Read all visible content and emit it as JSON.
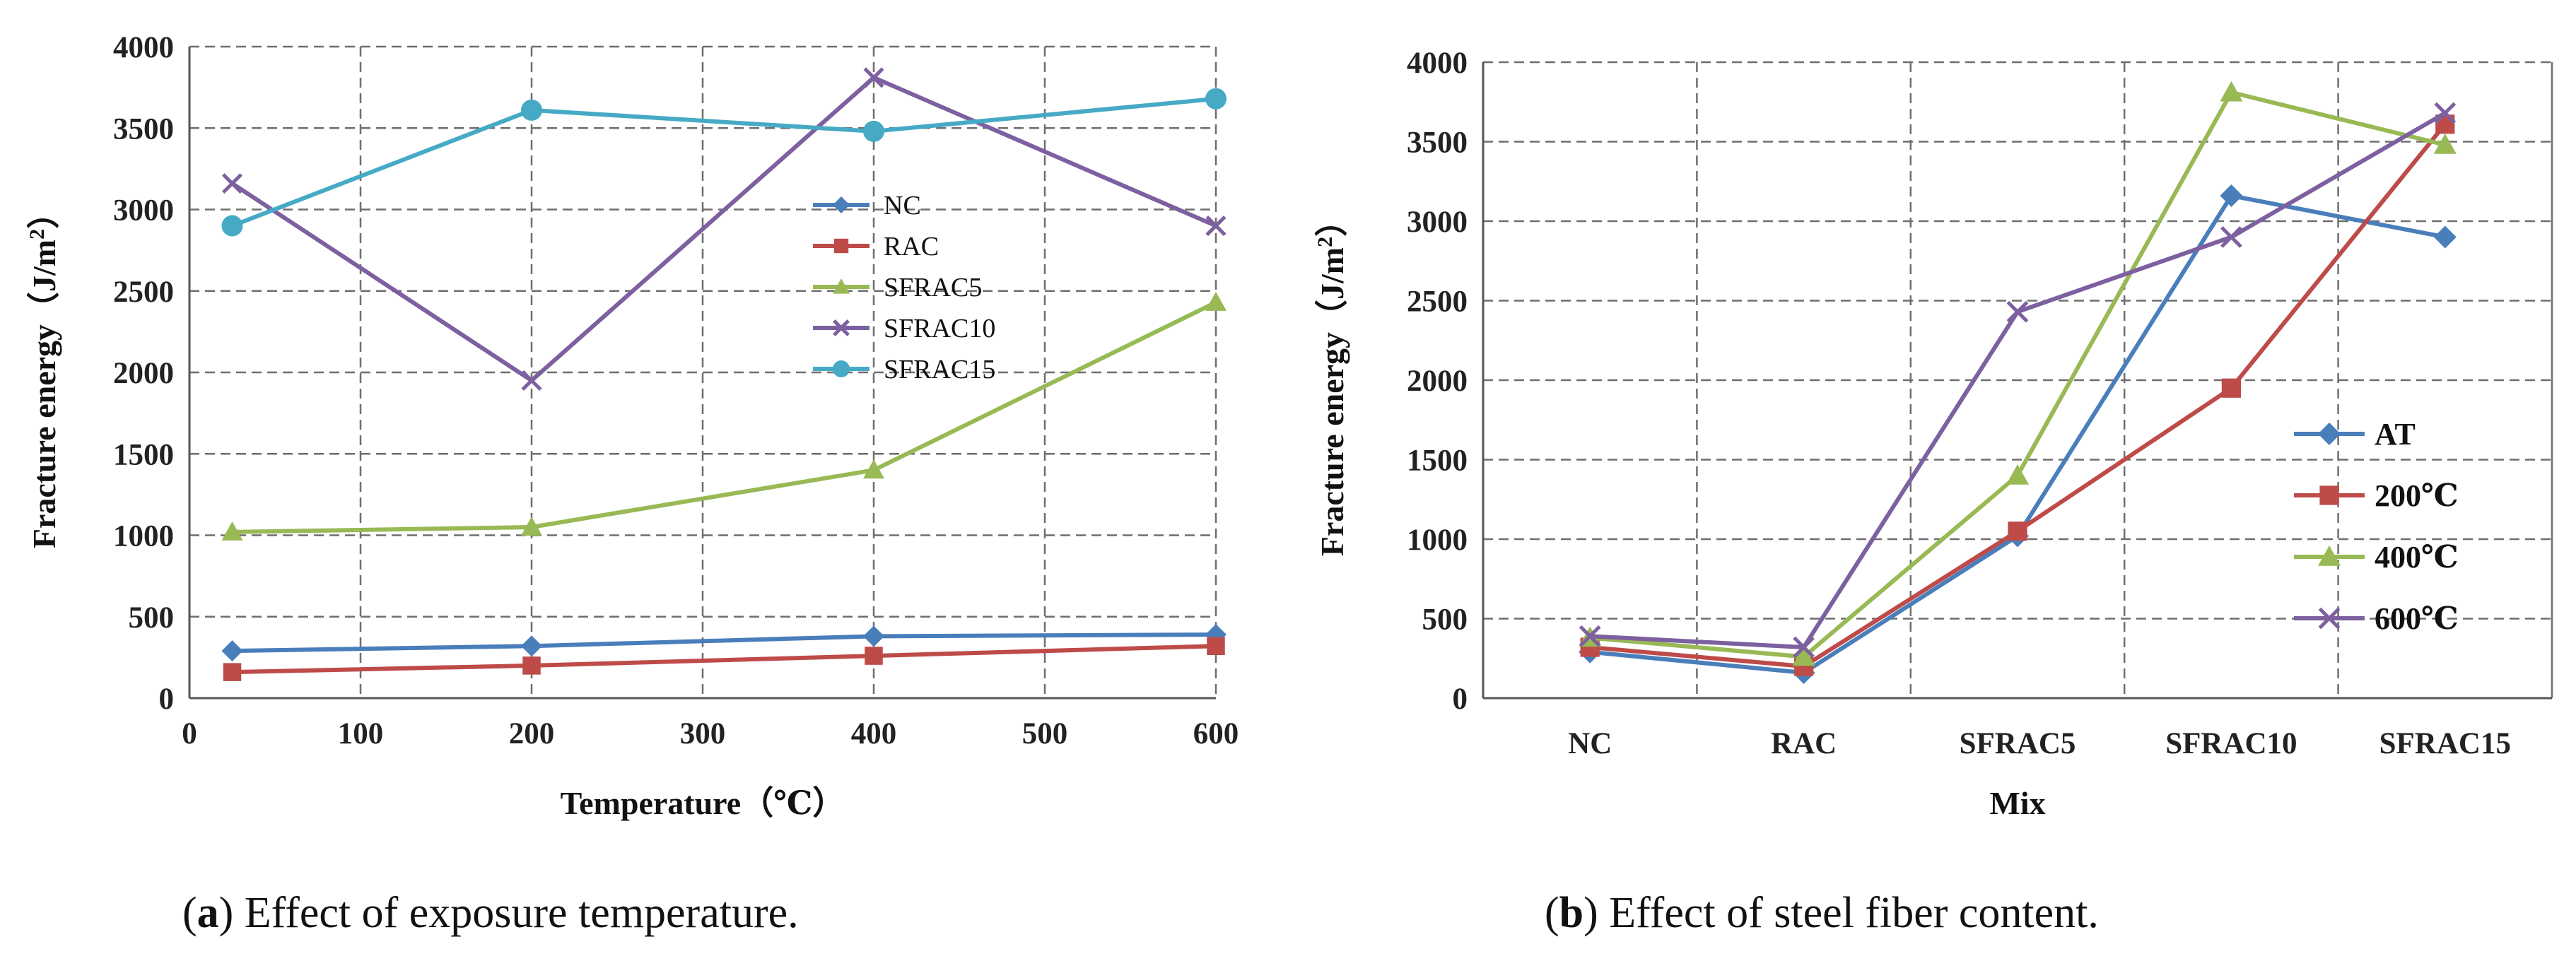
{
  "chart_data": [
    {
      "type": "line",
      "xlabel": "Temperature（℃）",
      "ylabel": "Fracture energy（J/m²）",
      "xlim": [
        0,
        600
      ],
      "ylim": [
        0,
        4000
      ],
      "xticks": [
        0,
        100,
        200,
        300,
        400,
        500,
        600
      ],
      "yticks": [
        0,
        500,
        1000,
        1500,
        2000,
        2500,
        3000,
        3500,
        4000
      ],
      "grid": true,
      "legend": "center-right",
      "x": [
        25,
        200,
        400,
        600
      ],
      "series": [
        {
          "name": "NC",
          "color": "#4a7ebb",
          "marker": "diamond",
          "values": [
            290,
            320,
            380,
            390
          ]
        },
        {
          "name": "RAC",
          "color": "#be4b48",
          "marker": "square",
          "values": [
            160,
            200,
            260,
            320
          ]
        },
        {
          "name": "SFRAC5",
          "color": "#98b954",
          "marker": "triangle",
          "values": [
            1020,
            1050,
            1400,
            2430
          ]
        },
        {
          "name": "SFRAC10",
          "color": "#7d60a0",
          "marker": "x",
          "values": [
            3160,
            1950,
            3810,
            2900
          ]
        },
        {
          "name": "SFRAC15",
          "color": "#46aac5",
          "marker": "circle",
          "values": [
            2900,
            3610,
            3480,
            3680
          ]
        }
      ]
    },
    {
      "type": "line",
      "xlabel": "Mix",
      "ylabel": "Fracture energy（J/m²）",
      "ylim": [
        0,
        4000
      ],
      "yticks": [
        0,
        500,
        1000,
        1500,
        2000,
        2500,
        3000,
        3500,
        4000
      ],
      "grid": true,
      "legend": "center-right",
      "categories": [
        "NC",
        "RAC",
        "SFRAC5",
        "SFRAC10",
        "SFRAC15"
      ],
      "series": [
        {
          "name": "AT",
          "color": "#4a7ebb",
          "marker": "diamond",
          "values": [
            290,
            160,
            1020,
            3160,
            2900
          ]
        },
        {
          "name": "200℃",
          "color": "#be4b48",
          "marker": "square",
          "values": [
            320,
            200,
            1050,
            1950,
            3610
          ]
        },
        {
          "name": "400℃",
          "color": "#98b954",
          "marker": "triangle",
          "values": [
            380,
            260,
            1400,
            3810,
            3480
          ]
        },
        {
          "name": "600℃",
          "color": "#7d60a0",
          "marker": "x",
          "values": [
            390,
            320,
            2430,
            2900,
            3680
          ]
        }
      ]
    }
  ],
  "captions": {
    "a": {
      "label": "a",
      "text": ") Effect of exposure temperature."
    },
    "b": {
      "label": "b",
      "text": ") Effect of steel fiber content."
    }
  }
}
